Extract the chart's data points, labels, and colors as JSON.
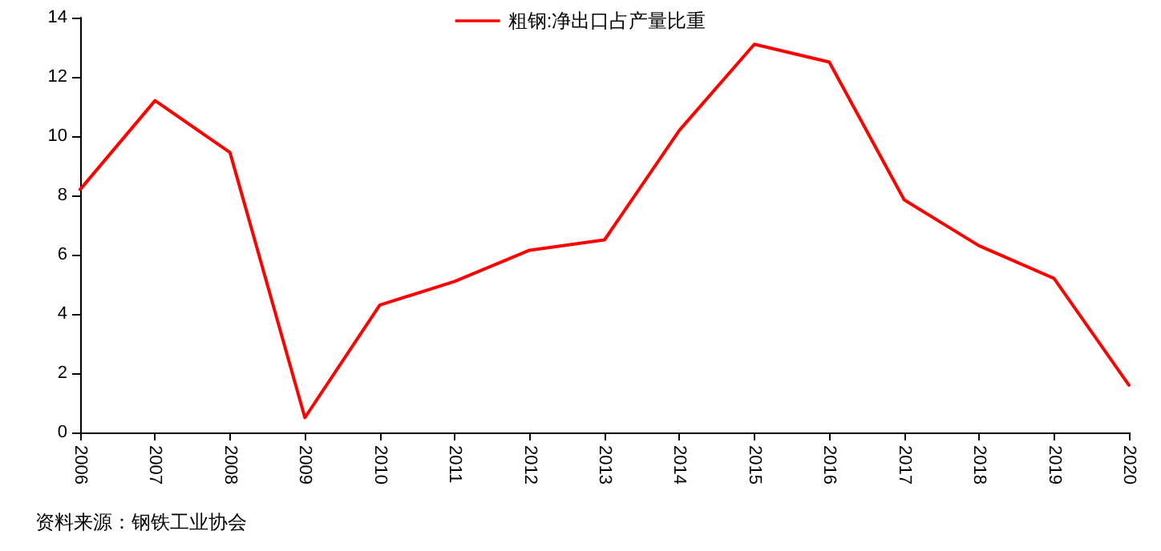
{
  "chart_data": {
    "type": "line",
    "categories": [
      "2006",
      "2007",
      "2008",
      "2009",
      "2010",
      "2011",
      "2012",
      "2013",
      "2014",
      "2015",
      "2016",
      "2017",
      "2018",
      "2019",
      "2020"
    ],
    "series": [
      {
        "name": "粗钢:净出口占产量比重",
        "color": "#ff0000",
        "values": [
          8.2,
          11.2,
          9.45,
          0.5,
          4.3,
          5.1,
          6.15,
          6.5,
          10.2,
          13.1,
          12.5,
          7.85,
          6.3,
          5.2,
          1.6
        ]
      }
    ],
    "ylim": [
      0,
      14
    ],
    "yticks": [
      0,
      2,
      4,
      6,
      8,
      10,
      12,
      14
    ],
    "grid": false,
    "legend": "top",
    "marker": "none",
    "line_style": "solid",
    "annotations": [
      "资料来源：钢铁工业协会"
    ]
  }
}
